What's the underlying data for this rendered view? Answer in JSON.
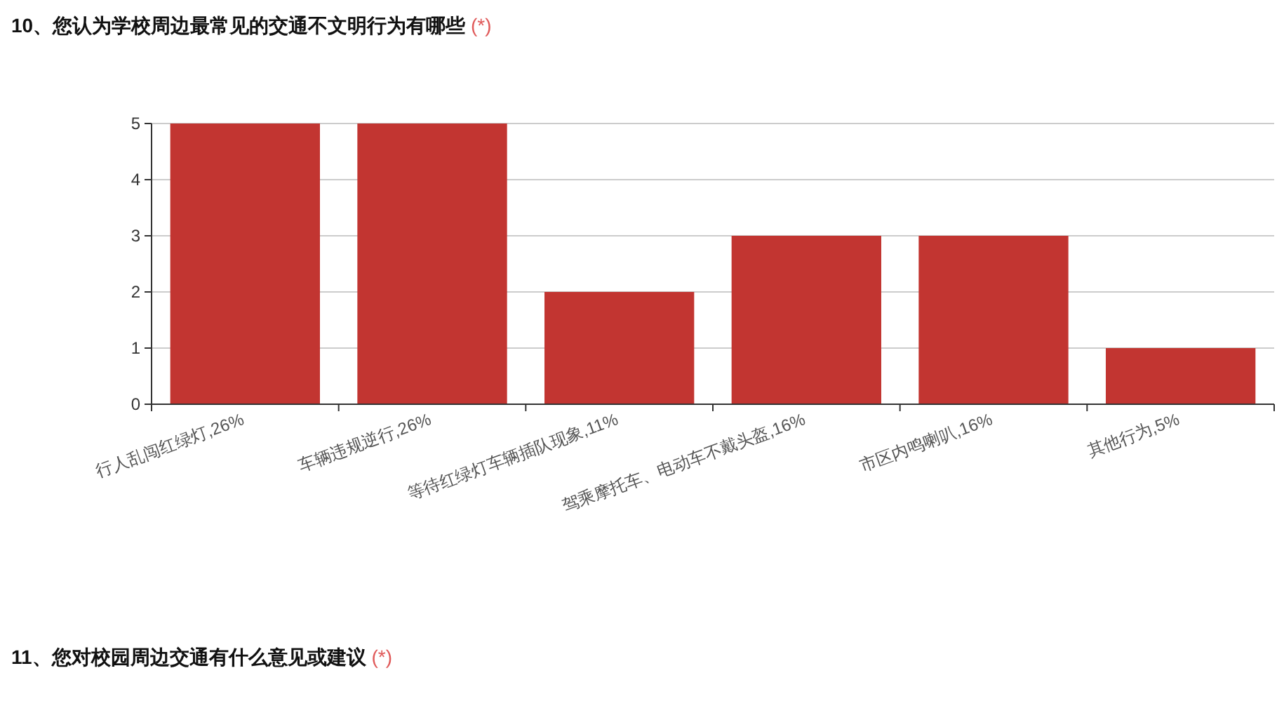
{
  "chart_data": {
    "type": "bar",
    "title": "10、您认为学校周边最常见的交通不文明行为有哪些 (*)",
    "categories": [
      "行人乱闯红绿灯,26%",
      "车辆违规逆行,26%",
      "等待红绿灯车辆插队现象,11%",
      "驾乘摩托车、电动车不戴头盔,16%",
      "市区内鸣喇叭,16%",
      "其他行为,5%"
    ],
    "values": [
      5,
      5,
      2,
      3,
      3,
      1
    ],
    "color": "#c23531",
    "ylim": [
      0,
      5
    ],
    "yticks": [
      0,
      1,
      2,
      3,
      4,
      5
    ],
    "grid": "y",
    "annotations": [
      "11、您对校园周边交通有什么意见或建议 (*)"
    ]
  }
}
